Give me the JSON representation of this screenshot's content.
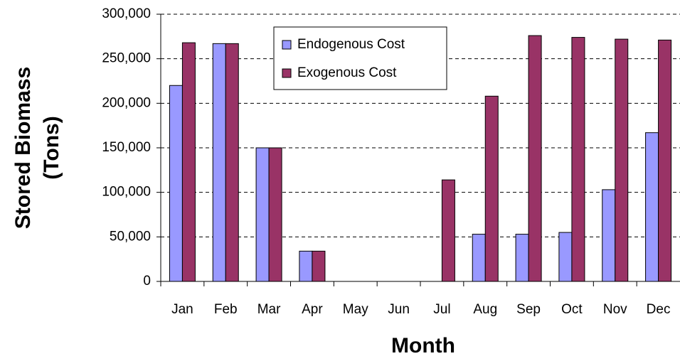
{
  "chart_data": {
    "type": "bar",
    "ylabel": [
      "Stored Biomass",
      "(Tons)"
    ],
    "xlabel": "Month",
    "categories": [
      "Jan",
      "Feb",
      "Mar",
      "Apr",
      "May",
      "Jun",
      "Jul",
      "Aug",
      "Sep",
      "Oct",
      "Nov",
      "Dec"
    ],
    "series": [
      {
        "name": "Endogenous Cost",
        "color": "#9999ff",
        "values": [
          220000,
          267000,
          150000,
          34000,
          0,
          0,
          0,
          53000,
          53000,
          55000,
          103000,
          167000
        ]
      },
      {
        "name": "Exogenous Cost",
        "color": "#993366",
        "values": [
          268000,
          267000,
          150000,
          34000,
          0,
          0,
          114000,
          208000,
          276000,
          274000,
          272000,
          271000
        ]
      }
    ],
    "ylim": [
      0,
      300000
    ],
    "yticks": [
      0,
      {
        "value": 50000,
        "label": "50,000"
      },
      {
        "value": 100000,
        "label": "100,000"
      },
      {
        "value": 150000,
        "label": "150,000"
      },
      {
        "value": 200000,
        "label": "200,000"
      },
      {
        "value": 250000,
        "label": "250,000"
      },
      {
        "value": 300000,
        "label": "300,000"
      }
    ],
    "grid": true,
    "legend": "top"
  }
}
